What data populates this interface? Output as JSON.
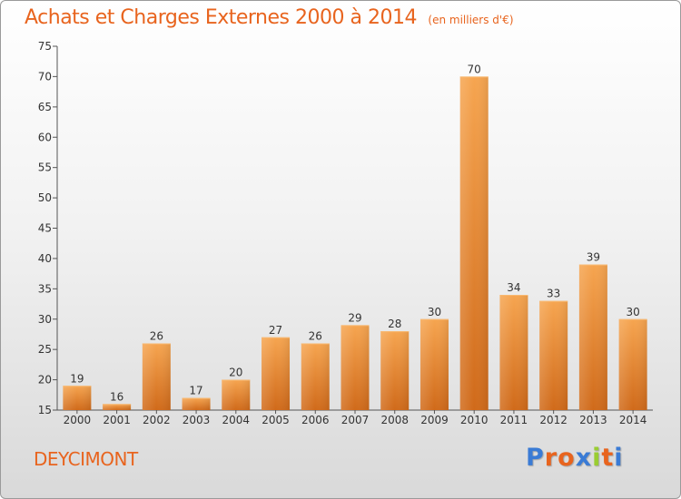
{
  "header": {
    "title": "Achats et Charges Externes 2000 à 2014",
    "unit": "(en milliers d'€)"
  },
  "footer": {
    "commune": "DEYCIMONT",
    "logo_text": "Proxiti",
    "logo_colors": [
      "#3a7bd5",
      "#e8641e",
      "#e8641e",
      "#3a7bd5",
      "#9acd32",
      "#e8641e",
      "#3a7bd5"
    ]
  },
  "chart_data": {
    "type": "bar",
    "categories": [
      "2000",
      "2001",
      "2002",
      "2003",
      "2004",
      "2005",
      "2006",
      "2007",
      "2008",
      "2009",
      "2010",
      "2011",
      "2012",
      "2013",
      "2014"
    ],
    "values": [
      19,
      16,
      26,
      17,
      20,
      27,
      26,
      29,
      28,
      30,
      70,
      34,
      33,
      39,
      30
    ],
    "ylim": [
      15,
      75
    ],
    "yticks": [
      15,
      20,
      25,
      30,
      35,
      40,
      45,
      50,
      55,
      60,
      65,
      70,
      75
    ],
    "grid": false,
    "bar_color": "#f0963c",
    "bar_color_dark": "#d97020"
  }
}
